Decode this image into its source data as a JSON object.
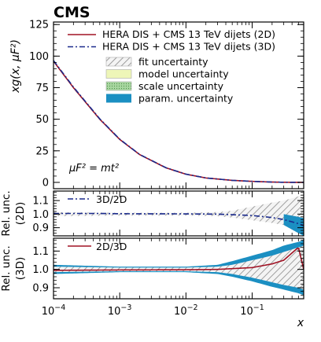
{
  "header": {
    "experiment": "CMS"
  },
  "chart_data": [
    {
      "type": "line",
      "panel": "main",
      "ylabel": "xg(x, μF²)",
      "ylim": [
        -5,
        127
      ],
      "yticks": [
        0,
        25,
        50,
        75,
        100,
        125
      ],
      "xscale": "log",
      "xlim": [
        0.0001,
        0.6
      ],
      "annotation": "μF² = mt²",
      "legend": {
        "position": "top-right",
        "entries": [
          {
            "label": "HERA DIS + CMS 13 TeV dijets (2D)",
            "style": "solid",
            "color": "#a01224"
          },
          {
            "label": "HERA DIS + CMS 13 TeV dijets (3D)",
            "style": "dashdot",
            "color": "#1a2a8c"
          },
          {
            "label": "fit uncertainty",
            "style": "hatched",
            "color": "#9a9a9a"
          },
          {
            "label": "model uncertainty",
            "style": "fill",
            "color": "#eef6b8"
          },
          {
            "label": "scale uncertainty",
            "style": "dotted-fill",
            "color": "#9ccf92"
          },
          {
            "label": "param. uncertainty",
            "style": "fill",
            "color": "#1b8fc2"
          }
        ]
      },
      "series": [
        {
          "name": "HERA DIS + CMS 13 TeV dijets (2D)",
          "x": [
            0.0001,
            0.0002,
            0.0005,
            0.001,
            0.002,
            0.005,
            0.01,
            0.02,
            0.05,
            0.1,
            0.2,
            0.3,
            0.5,
            0.6
          ],
          "y": [
            96,
            75,
            50,
            34,
            22,
            11.5,
            6.5,
            3.5,
            1.6,
            0.8,
            0.25,
            0.08,
            0.01,
            0.0
          ]
        },
        {
          "name": "HERA DIS + CMS 13 TeV dijets (3D)",
          "x": [
            0.0001,
            0.0002,
            0.0005,
            0.001,
            0.002,
            0.005,
            0.01,
            0.02,
            0.05,
            0.1,
            0.2,
            0.3,
            0.5,
            0.6
          ],
          "y": [
            96.5,
            75.5,
            50.3,
            34.2,
            22.1,
            11.6,
            6.5,
            3.5,
            1.6,
            0.8,
            0.25,
            0.08,
            0.01,
            0.0
          ]
        }
      ]
    },
    {
      "type": "line",
      "panel": "ratio-2D",
      "ylabel": "Rel. unc. (2D)",
      "ylim": [
        0.84,
        1.17
      ],
      "yticks": [
        0.9,
        1.0,
        1.1
      ],
      "legend": {
        "position": "top-left",
        "entries": [
          {
            "label": "3D/2D",
            "style": "dashdot",
            "color": "#1a2a8c"
          }
        ]
      },
      "bands": [
        {
          "name": "fit uncertainty",
          "x": [
            0.0001,
            0.001,
            0.01,
            0.03,
            0.05,
            0.1,
            0.2,
            0.3,
            0.5,
            0.6
          ],
          "lo": [
            0.985,
            0.99,
            0.99,
            0.985,
            0.975,
            0.955,
            0.935,
            0.92,
            0.895,
            0.87
          ],
          "hi": [
            1.015,
            1.01,
            1.01,
            1.015,
            1.025,
            1.055,
            1.085,
            1.1,
            1.13,
            1.15
          ]
        },
        {
          "name": "param. uncertainty",
          "x": [
            0.3,
            0.5,
            0.6
          ],
          "lo": [
            0.92,
            0.86,
            0.84
          ],
          "hi": [
            1.0,
            0.98,
            0.97
          ]
        }
      ],
      "series": [
        {
          "name": "3D/2D",
          "x": [
            0.0001,
            0.0005,
            0.001,
            0.01,
            0.03,
            0.1,
            0.2,
            0.3,
            0.5,
            0.6
          ],
          "y": [
            1.005,
            1.005,
            1.003,
            1.002,
            1.0,
            0.99,
            0.975,
            0.96,
            0.93,
            0.915
          ]
        }
      ]
    },
    {
      "type": "line",
      "panel": "ratio-3D",
      "ylabel": "Rel. unc. (3D)",
      "ylim": [
        0.84,
        1.17
      ],
      "yticks": [
        0.9,
        1.0,
        1.1
      ],
      "legend": {
        "position": "top-left",
        "entries": [
          {
            "label": "2D/3D",
            "style": "solid",
            "color": "#a01224"
          }
        ]
      },
      "bands": [
        {
          "name": "param. uncertainty",
          "x": [
            0.0001,
            0.001,
            0.01,
            0.03,
            0.05,
            0.1,
            0.2,
            0.3,
            0.5,
            0.6
          ],
          "lo": [
            0.975,
            0.985,
            0.985,
            0.975,
            0.96,
            0.935,
            0.905,
            0.89,
            0.87,
            0.86
          ],
          "hi": [
            1.025,
            1.015,
            1.015,
            1.025,
            1.045,
            1.075,
            1.105,
            1.13,
            1.15,
            1.16
          ]
        },
        {
          "name": "fit uncertainty",
          "x": [
            0.0001,
            0.001,
            0.01,
            0.03,
            0.05,
            0.1,
            0.2,
            0.3,
            0.5,
            0.6
          ],
          "lo": [
            0.985,
            0.99,
            0.99,
            0.985,
            0.975,
            0.955,
            0.93,
            0.915,
            0.9,
            0.89
          ],
          "hi": [
            1.015,
            1.01,
            1.01,
            1.015,
            1.025,
            1.05,
            1.075,
            1.095,
            1.12,
            1.13
          ]
        }
      ],
      "series": [
        {
          "name": "2D/3D",
          "x": [
            0.0001,
            0.001,
            0.01,
            0.03,
            0.1,
            0.2,
            0.3,
            0.4,
            0.5,
            0.6
          ],
          "y": [
            0.995,
            0.997,
            0.998,
            1.0,
            1.01,
            1.03,
            1.05,
            1.09,
            1.12,
            1.0
          ]
        }
      ]
    }
  ],
  "x_axis": {
    "label": "x",
    "ticks": [
      {
        "value": 0.0001,
        "base": "10",
        "exp": "−4"
      },
      {
        "value": 0.001,
        "base": "10",
        "exp": "−3"
      },
      {
        "value": 0.01,
        "base": "10",
        "exp": "−2"
      },
      {
        "value": 0.1,
        "base": "10",
        "exp": "−1"
      }
    ]
  }
}
